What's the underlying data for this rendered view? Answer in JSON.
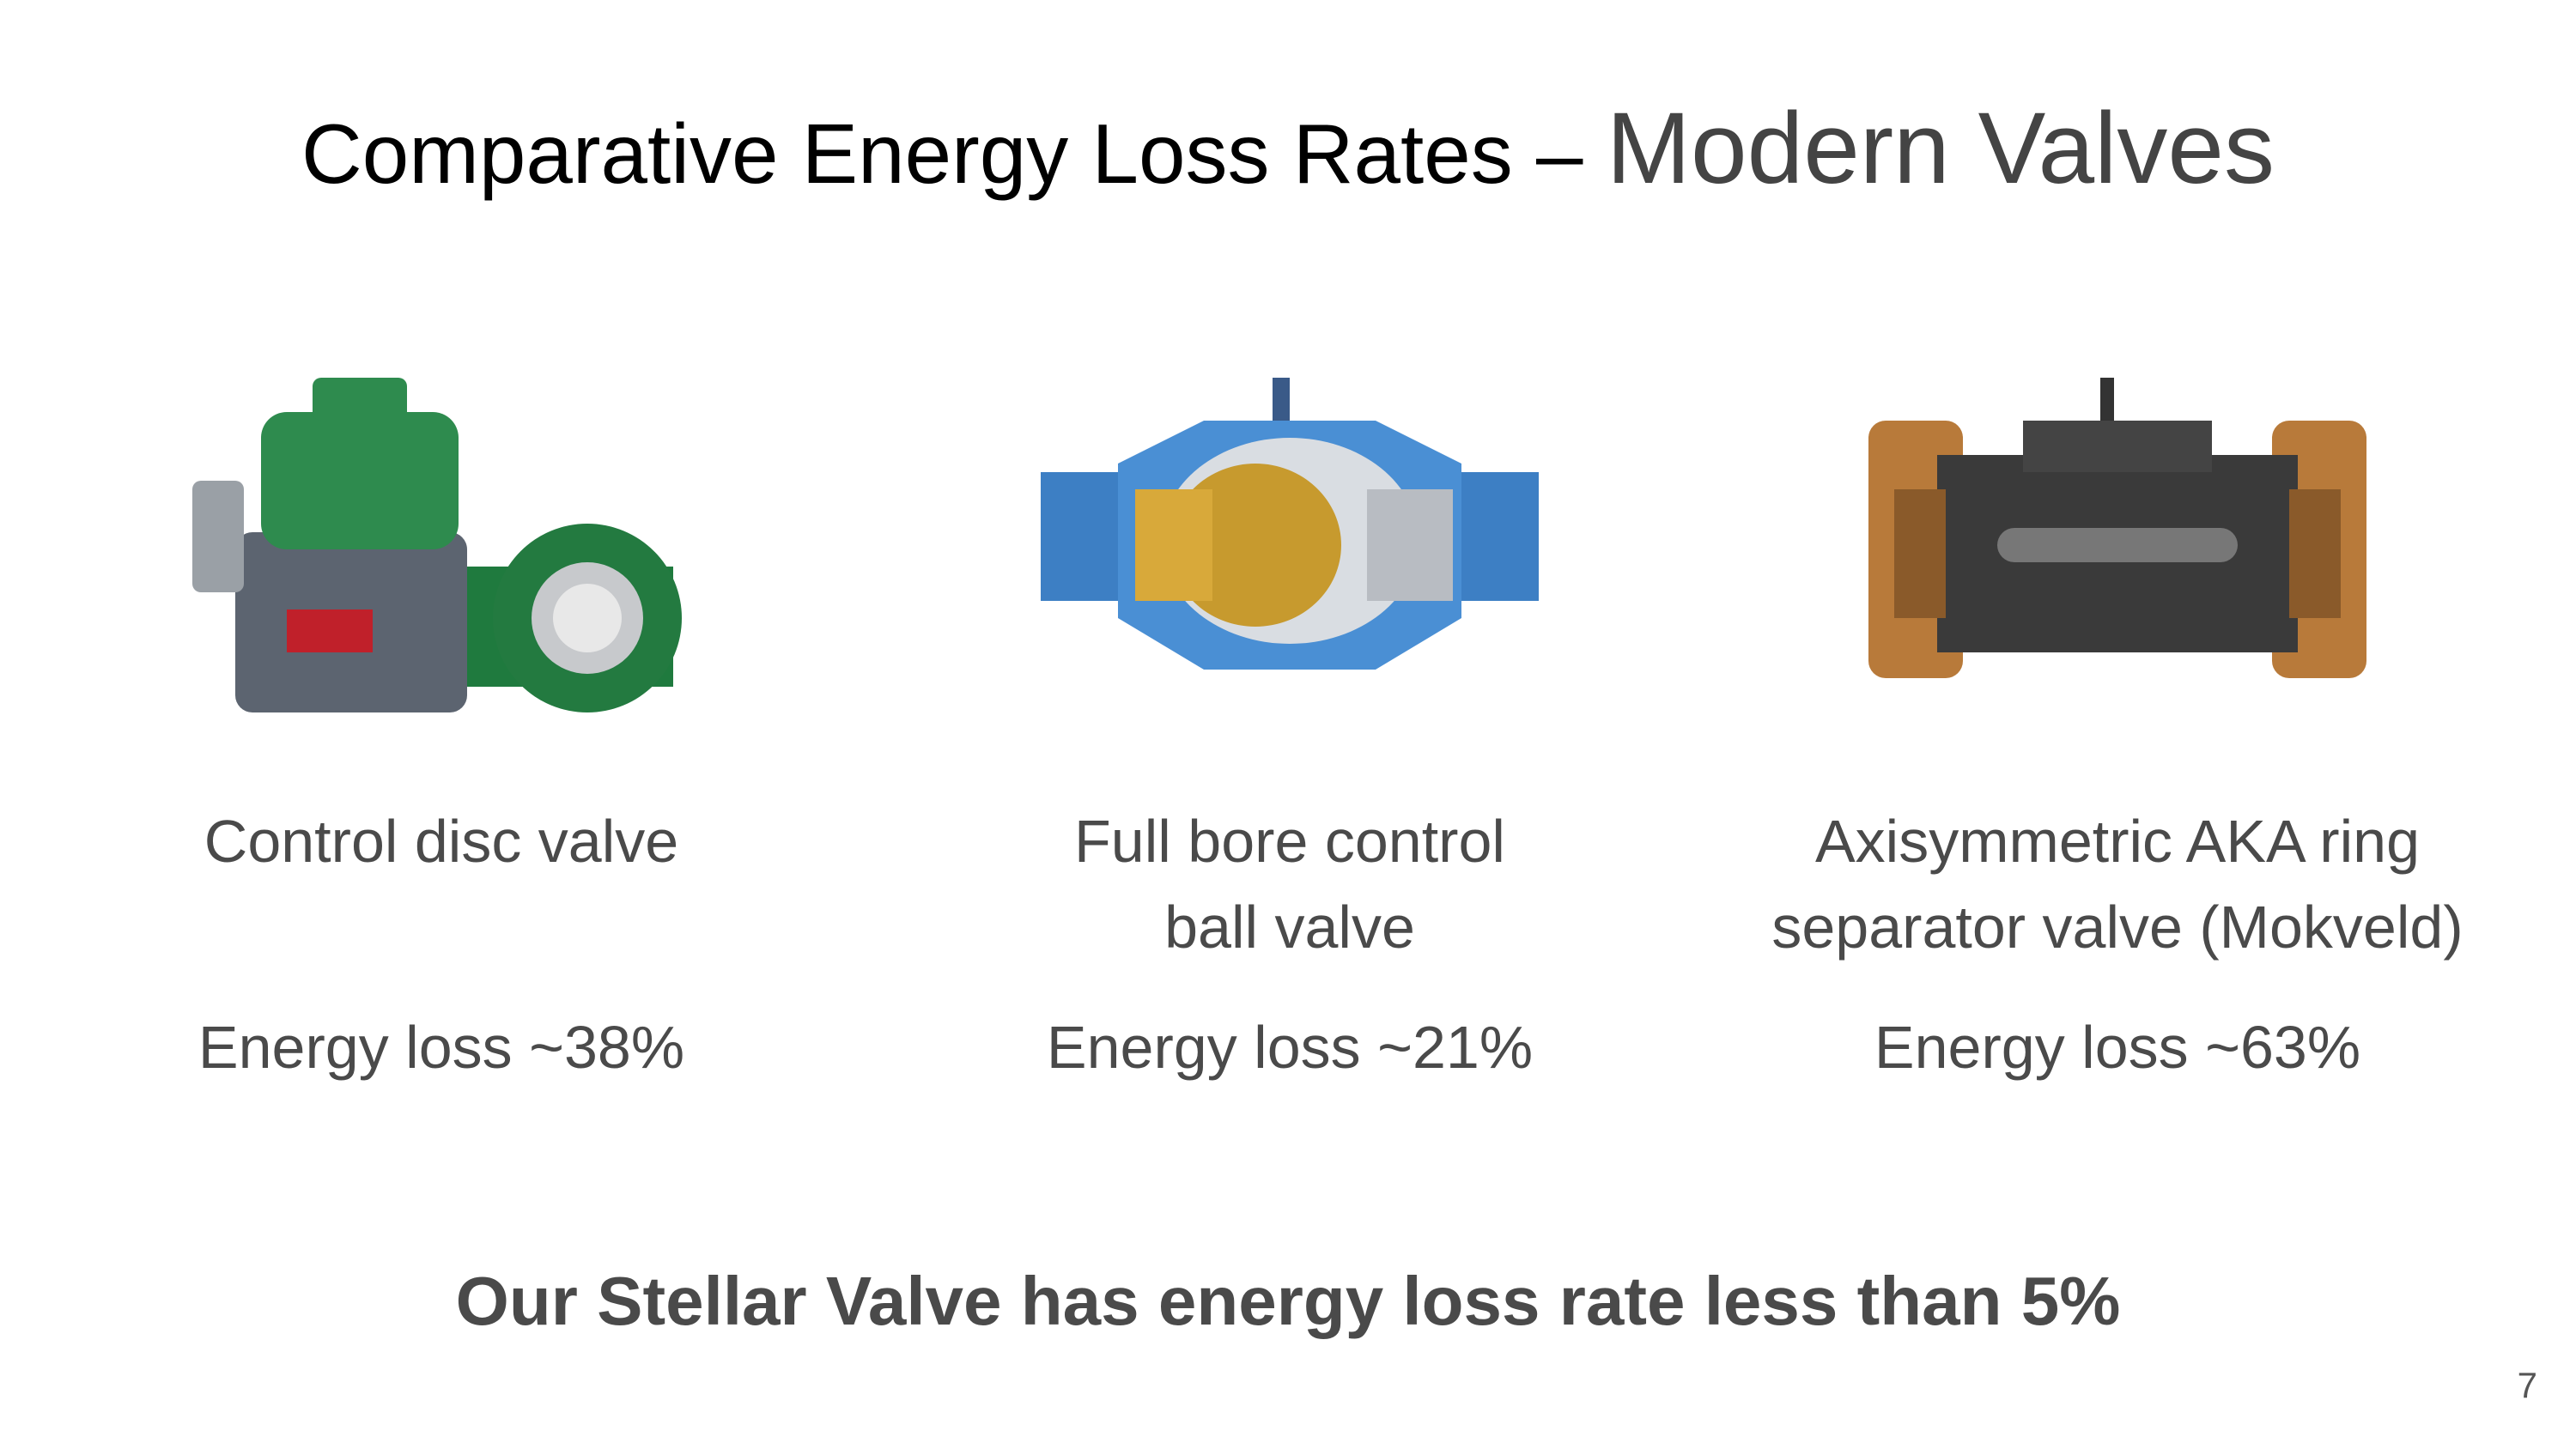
{
  "title": {
    "main": "Comparative Energy Loss Rates – ",
    "accent": "Modern Valves"
  },
  "valves": [
    {
      "name": [
        "Control disc valve"
      ],
      "loss": "Energy loss ~38%"
    },
    {
      "name": [
        "Full bore control",
        "ball valve"
      ],
      "loss": "Energy loss ~21%"
    },
    {
      "name": [
        "Axisymmetric AKA ring",
        "separator valve (Mokveld)"
      ],
      "loss": "Energy loss ~63%"
    }
  ],
  "footer": "Our Stellar Valve has energy loss rate less than 5%",
  "page_number": "7"
}
